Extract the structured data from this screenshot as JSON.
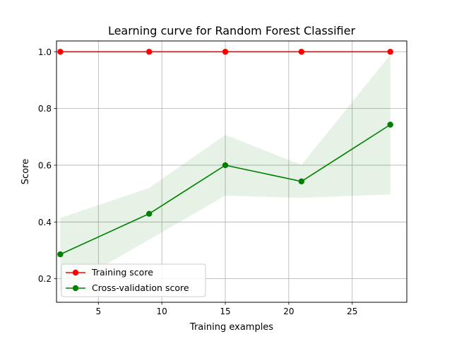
{
  "chart_data": {
    "type": "line",
    "title": "Learning curve for Random Forest Classifier",
    "xlabel": "Training examples",
    "ylabel": "Score",
    "xlim": [
      1.7,
      29.3
    ],
    "ylim": [
      0.117,
      1.038
    ],
    "xticks": [
      5,
      10,
      15,
      20,
      25
    ],
    "xtick_labels": [
      "5",
      "10",
      "15",
      "20",
      "25"
    ],
    "yticks": [
      0.2,
      0.4,
      0.6,
      0.8,
      1.0
    ],
    "ytick_labels": [
      "0.2",
      "0.4",
      "0.6",
      "0.8",
      "1.0"
    ],
    "grid": true,
    "legend_position": "lower-left",
    "x": [
      2,
      9,
      15,
      21,
      28
    ],
    "series": [
      {
        "name": "Training score",
        "color": "#ff0000",
        "values": [
          1.0,
          1.0,
          1.0,
          1.0,
          1.0
        ],
        "band_lower": [
          1.0,
          1.0,
          1.0,
          1.0,
          1.0
        ],
        "band_upper": [
          1.0,
          1.0,
          1.0,
          1.0,
          1.0
        ]
      },
      {
        "name": "Cross-validation score",
        "color": "#008000",
        "values": [
          0.286,
          0.429,
          0.6,
          0.543,
          0.743
        ],
        "band_lower": [
          0.158,
          0.338,
          0.493,
          0.485,
          0.497
        ],
        "band_upper": [
          0.414,
          0.52,
          0.707,
          0.601,
          0.989
        ]
      }
    ]
  }
}
